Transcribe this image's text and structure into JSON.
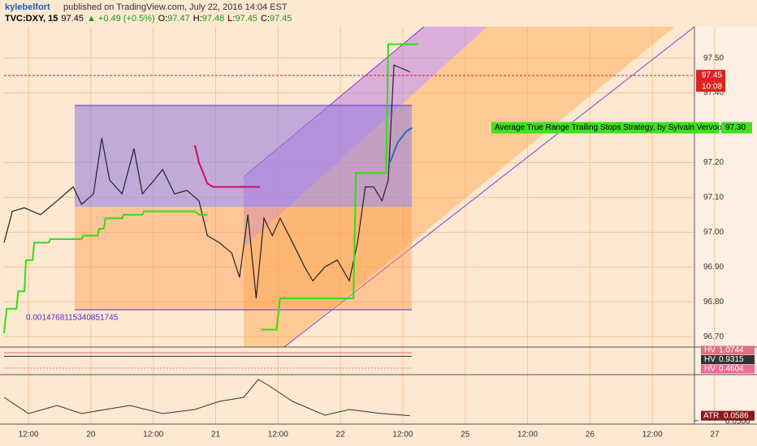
{
  "chart_data": {
    "type": "line",
    "header": {
      "author": "kylebelfort",
      "text": "published on TradingView.com, July 22, 2016 14:04 EST",
      "quote": [
        "TVC:DXY, 15",
        "97.45",
        "▲ +0.49 (+0.5%)",
        "O:",
        "97.47",
        "H:",
        "97.48",
        "L:",
        "97.45",
        "C:",
        "97.45"
      ]
    },
    "xlim": [
      -4.7,
      128.1
    ],
    "xticks": [
      {
        "value": 0,
        "label": "12:00"
      },
      {
        "value": 12,
        "label": "20"
      },
      {
        "value": 24,
        "label": "12:00"
      },
      {
        "value": 36,
        "label": "21"
      },
      {
        "value": 48,
        "label": "12:00"
      },
      {
        "value": 60,
        "label": "22"
      },
      {
        "value": 72,
        "label": "12:00"
      },
      {
        "value": 84,
        "label": "25"
      },
      {
        "value": 96,
        "label": "12:00"
      },
      {
        "value": 108,
        "label": "26"
      },
      {
        "value": 120,
        "label": "12:00"
      },
      {
        "value": 132,
        "label": "27"
      }
    ],
    "ylim": [
      96.67,
      97.59
    ],
    "yticks": [
      {
        "value": 96.7,
        "label": "96.70"
      },
      {
        "value": 96.8,
        "label": "96.80"
      },
      {
        "value": 96.9,
        "label": "96.90"
      },
      {
        "value": 97.0,
        "label": "97.00"
      },
      {
        "value": 97.1,
        "label": "97.10"
      },
      {
        "value": 97.2,
        "label": "97.20"
      },
      {
        "value": 97.4,
        "label": "97.40"
      },
      {
        "value": 97.5,
        "label": "97.50"
      }
    ],
    "grid": true,
    "series": [
      {
        "color": "#222222",
        "x": [
          -4.7,
          -3.1,
          -0.8,
          2.3,
          5.5,
          8.6,
          10.2,
          12.5,
          14.1,
          15.6,
          18.0,
          20.3,
          21.9,
          24.2,
          25.8,
          28.1,
          30.5,
          32.8,
          34.4,
          36.7,
          39.1,
          40.6,
          42.2,
          43.8,
          45.3,
          46.9,
          48.4,
          50.8,
          53.1,
          54.7,
          57.0,
          59.4,
          61.7,
          63.3,
          64.8,
          66.4,
          68.0,
          69.2,
          70.3,
          71.9,
          73.4
        ],
        "values": [
          96.97,
          97.06,
          97.07,
          97.05,
          97.09,
          97.13,
          97.08,
          97.11,
          97.27,
          97.15,
          97.11,
          97.24,
          97.11,
          97.15,
          97.18,
          97.11,
          97.12,
          97.09,
          96.99,
          96.97,
          96.94,
          96.87,
          97.05,
          96.81,
          97.04,
          96.99,
          97.04,
          96.97,
          96.9,
          96.86,
          96.9,
          96.92,
          96.86,
          96.97,
          97.13,
          97.13,
          97.09,
          97.15,
          97.48,
          97.47,
          97.46
        ]
      },
      {
        "color": "#33dd11",
        "x": [
          -4.7,
          -4.2,
          -2.3,
          -2.0,
          -0.8,
          -0.5,
          0.8,
          1.1,
          3.9,
          4.2,
          10.2,
          10.5,
          13.3,
          13.6,
          14.5,
          14.8,
          18.0,
          18.3,
          21.9,
          22.2,
          32.0,
          32.8,
          34.4,
          39.8,
          44.8,
          47.7,
          48.4,
          62.5,
          63.0,
          68.8,
          69.2,
          75.0
        ],
        "values": [
          96.71,
          96.78,
          96.78,
          96.83,
          96.83,
          96.92,
          96.92,
          96.97,
          96.97,
          96.98,
          96.98,
          96.99,
          96.99,
          97.01,
          97.01,
          97.04,
          97.04,
          97.05,
          97.05,
          97.06,
          97.06,
          97.05,
          97.05,
          null,
          96.72,
          96.72,
          96.81,
          96.81,
          97.17,
          97.17,
          97.54,
          97.54
        ]
      },
      {
        "color": "#d01050",
        "x": [
          32.0,
          32.8,
          34.4,
          35.5,
          44.5
        ],
        "values": [
          97.25,
          97.2,
          97.14,
          97.13,
          97.13
        ]
      },
      {
        "color": "#2a6fb0",
        "x": [
          69.5,
          71.1,
          72.7,
          73.8
        ],
        "values": [
          97.2,
          97.26,
          97.29,
          97.3
        ]
      }
    ],
    "last_price": {
      "value": 97.45,
      "label": "97.45",
      "time": "10:08"
    },
    "strategy": {
      "text": "Average True Range Trailing Stops Strategy, by Sylvain Vervoort",
      "value": 97.3,
      "label": "97.30"
    },
    "annotation": "0.0014768115340851745",
    "hv": {
      "ylim": [
        0.2,
        1.3
      ],
      "name": "HV",
      "levels": [
        {
          "value": 1.0744,
          "label": "1.0744",
          "color": "#e07080"
        },
        {
          "value": 0.9315,
          "label": "0.9315",
          "color": "#333333"
        },
        {
          "value": 0.4604,
          "label": "0.4604",
          "color": "#f06a9a"
        }
      ]
    },
    "atr": {
      "name": "ATR",
      "ylim": [
        0.044,
        0.13
      ],
      "yticks": [
        {
          "value": 0.05,
          "label": "0.0500"
        }
      ],
      "color": "#333333",
      "x": [
        -4.7,
        0,
        5.5,
        10.2,
        14.8,
        19.5,
        25.8,
        32.0,
        36.7,
        41.4,
        44.2,
        46.1,
        50.8,
        57.0,
        61.7,
        68.0,
        73.4
      ],
      "values": [
        0.0905,
        0.0623,
        0.0764,
        0.0623,
        0.0694,
        0.0764,
        0.0623,
        0.0694,
        0.0835,
        0.0905,
        0.1215,
        0.1117,
        0.0835,
        0.0595,
        0.0694,
        0.0623,
        0.0586
      ],
      "last_label": "0.0586"
    }
  }
}
